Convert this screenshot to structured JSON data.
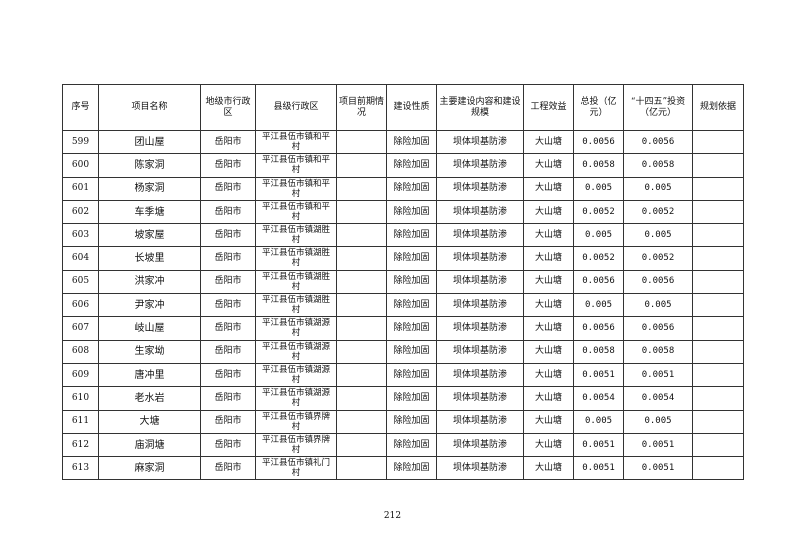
{
  "table": {
    "headers": [
      "序号",
      "项目名称",
      "地级市行政区",
      "县级行政区",
      "项目前期情况",
      "建设性质",
      "主要建设内容和建设规模",
      "工程效益",
      "总投（亿元）",
      "“十四五”投资（亿元）",
      "规划依据"
    ],
    "rows": [
      [
        "599",
        "团山屋",
        "岳阳市",
        "平江县伍市镇和平村",
        "",
        "除险加固",
        "坝体坝基防渗",
        "大山塘",
        "0.0056",
        "0.0056",
        ""
      ],
      [
        "600",
        "陈家洞",
        "岳阳市",
        "平江县伍市镇和平村",
        "",
        "除险加固",
        "坝体坝基防渗",
        "大山塘",
        "0.0058",
        "0.0058",
        ""
      ],
      [
        "601",
        "杨家洞",
        "岳阳市",
        "平江县伍市镇和平村",
        "",
        "除险加固",
        "坝体坝基防渗",
        "大山塘",
        "0.005",
        "0.005",
        ""
      ],
      [
        "602",
        "车季塘",
        "岳阳市",
        "平江县伍市镇和平村",
        "",
        "除险加固",
        "坝体坝基防渗",
        "大山塘",
        "0.0052",
        "0.0052",
        ""
      ],
      [
        "603",
        "坡家屋",
        "岳阳市",
        "平江县伍市镇湖胜村",
        "",
        "除险加固",
        "坝体坝基防渗",
        "大山塘",
        "0.005",
        "0.005",
        ""
      ],
      [
        "604",
        "长坡里",
        "岳阳市",
        "平江县伍市镇湖胜村",
        "",
        "除险加固",
        "坝体坝基防渗",
        "大山塘",
        "0.0052",
        "0.0052",
        ""
      ],
      [
        "605",
        "洪家冲",
        "岳阳市",
        "平江县伍市镇湖胜村",
        "",
        "除险加固",
        "坝体坝基防渗",
        "大山塘",
        "0.0056",
        "0.0056",
        ""
      ],
      [
        "606",
        "尹家冲",
        "岳阳市",
        "平江县伍市镇湖胜村",
        "",
        "除险加固",
        "坝体坝基防渗",
        "大山塘",
        "0.005",
        "0.005",
        ""
      ],
      [
        "607",
        "岐山屋",
        "岳阳市",
        "平江县伍市镇湖源村",
        "",
        "除险加固",
        "坝体坝基防渗",
        "大山塘",
        "0.0056",
        "0.0056",
        ""
      ],
      [
        "608",
        "生家坳",
        "岳阳市",
        "平江县伍市镇湖源村",
        "",
        "除险加固",
        "坝体坝基防渗",
        "大山塘",
        "0.0058",
        "0.0058",
        ""
      ],
      [
        "609",
        "唐冲里",
        "岳阳市",
        "平江县伍市镇湖源村",
        "",
        "除险加固",
        "坝体坝基防渗",
        "大山塘",
        "0.0051",
        "0.0051",
        ""
      ],
      [
        "610",
        "老水岩",
        "岳阳市",
        "平江县伍市镇湖源村",
        "",
        "除险加固",
        "坝体坝基防渗",
        "大山塘",
        "0.0054",
        "0.0054",
        ""
      ],
      [
        "611",
        "大塘",
        "岳阳市",
        "平江县伍市镇界牌村",
        "",
        "除险加固",
        "坝体坝基防渗",
        "大山塘",
        "0.005",
        "0.005",
        ""
      ],
      [
        "612",
        "庙洞塘",
        "岳阳市",
        "平江县伍市镇界牌村",
        "",
        "除险加固",
        "坝体坝基防渗",
        "大山塘",
        "0.0051",
        "0.0051",
        ""
      ],
      [
        "613",
        "麻家洞",
        "岳阳市",
        "平江县伍市镇礼门村",
        "",
        "除险加固",
        "坝体坝基防渗",
        "大山塘",
        "0.0051",
        "0.0051",
        ""
      ]
    ]
  },
  "page_number": "212"
}
